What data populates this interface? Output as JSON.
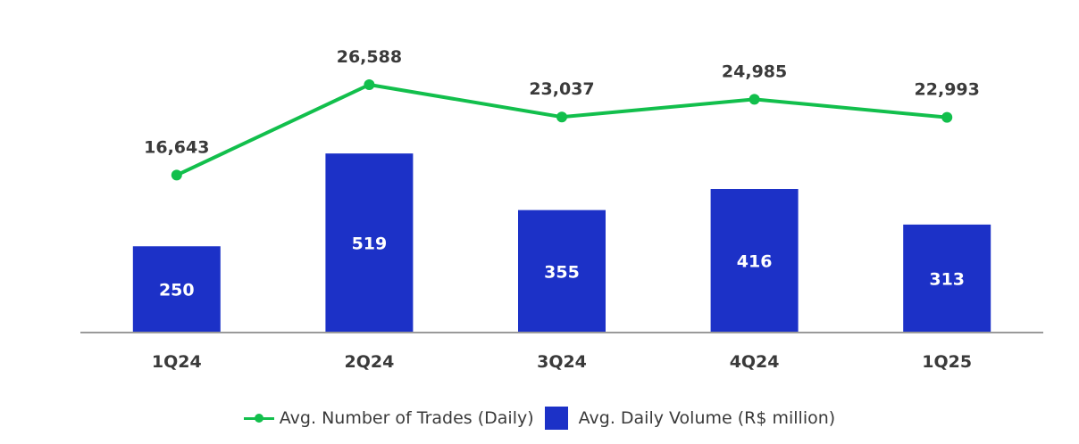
{
  "chart_data": {
    "type": "bar",
    "categories": [
      "1Q24",
      "2Q24",
      "3Q24",
      "4Q24",
      "1Q25"
    ],
    "series": [
      {
        "name": "Avg. Daily Volume (R$ million)",
        "type": "bar",
        "values": [
          250,
          519,
          355,
          416,
          313
        ],
        "labels": [
          "250",
          "519",
          "355",
          "416",
          "313"
        ],
        "color": "#1c31c7"
      },
      {
        "name": "Avg. Number of Trades (Daily)",
        "type": "line",
        "values": [
          16643,
          26588,
          23037,
          24985,
          22993
        ],
        "labels": [
          "16,643",
          "26,588",
          "23,037",
          "24,985",
          "22,993"
        ],
        "color": "#12bf4c"
      }
    ],
    "legend_position": "bottom",
    "grid": false
  }
}
